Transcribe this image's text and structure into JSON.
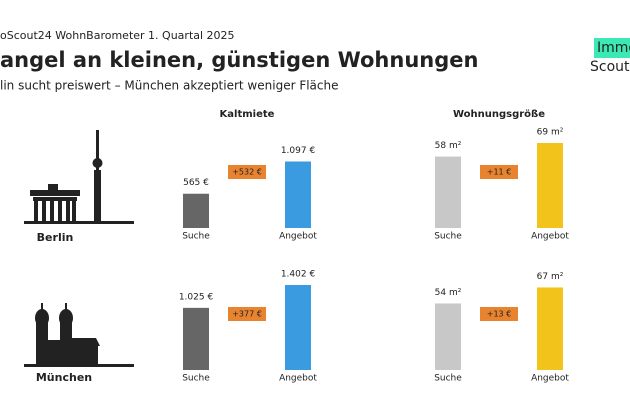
{
  "header": {
    "kicker": "oScout24 WohnBarometer 1. Quartal 2025",
    "title": "angel an kleinen, günstigen Wohnungen",
    "subtitle": "lin sucht preiswert – München akzeptiert weniger Fläche",
    "logo_top": "Immo",
    "logo_bottom": "Scout"
  },
  "cities": [
    "Berlin",
    "München"
  ],
  "chart_data": [
    {
      "type": "bar",
      "title": "Kaltmiete",
      "categories": [
        "Suche",
        "Angebot"
      ],
      "values": [
        565,
        1097
      ],
      "value_labels": [
        "565 €",
        "1.097 €"
      ],
      "colors": [
        "#666666",
        "#3a9be0"
      ],
      "annotation": "+532 €"
    },
    {
      "type": "bar",
      "title": "Wohnungsgröße",
      "categories": [
        "Suche",
        "Angebot"
      ],
      "values": [
        58,
        69
      ],
      "value_labels": [
        "58 m²",
        "69 m²"
      ],
      "colors": [
        "#c8c8c8",
        "#f2c31a"
      ],
      "annotation": "+11 €"
    },
    {
      "type": "bar",
      "categories": [
        "Suche",
        "Angebot"
      ],
      "values": [
        1025,
        1402
      ],
      "value_labels": [
        "1.025 €",
        "1.402 €"
      ],
      "colors": [
        "#666666",
        "#3a9be0"
      ],
      "annotation": "+377 €"
    },
    {
      "type": "bar",
      "categories": [
        "Suche",
        "Angebot"
      ],
      "values": [
        54,
        67
      ],
      "value_labels": [
        "54 m²",
        "67 m²"
      ],
      "colors": [
        "#c8c8c8",
        "#f2c31a"
      ],
      "annotation": "+13 €"
    }
  ]
}
